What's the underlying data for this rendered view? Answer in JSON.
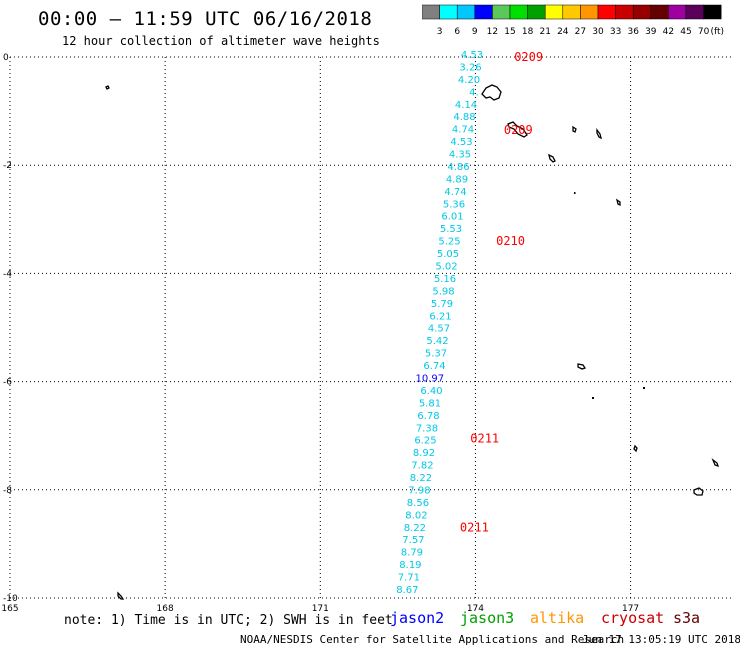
{
  "title": "00:00 – 11:59 UTC 06/16/2018",
  "subtitle": "12 hour collection of altimeter wave heights",
  "scale": {
    "colors": [
      "#808080",
      "#00ffff",
      "#00c8ff",
      "#0000ff",
      "#5ac85a",
      "#00e000",
      "#00a000",
      "#ffff00",
      "#ffc800",
      "#ff9600",
      "#ff0000",
      "#c80000",
      "#960000",
      "#640000",
      "#a000a0",
      "#5a005a",
      "#000000"
    ],
    "labels": [
      "3",
      "6",
      "9",
      "12",
      "15",
      "18",
      "21",
      "24",
      "27",
      "30",
      "33",
      "36",
      "39",
      "42",
      "45",
      "70"
    ],
    "unit": "(ft)"
  },
  "axes": {
    "y_labels": [
      "0",
      "-2",
      "-4",
      "-6",
      "-8",
      "-10"
    ],
    "x_labels": [
      "165",
      "168",
      "171",
      "174",
      "177"
    ],
    "lat_range": [
      -10,
      0
    ],
    "lon_range": [
      165,
      179
    ]
  },
  "track": {
    "start_lon": 174.15,
    "end_lon": 172.9,
    "heights": [
      "4.53",
      "3.26",
      "4.20",
      "4.",
      "4.14",
      "4.88",
      "4.74",
      "4.53",
      "4.35",
      "4.86",
      "4.89",
      "4.74",
      "5.36",
      "6.01",
      "5.53",
      "5.25",
      "5.05",
      "5.02",
      "5.16",
      "5.98",
      "5.79",
      "6.21",
      "4.57",
      "5.42",
      "5.37",
      "6.74",
      "10.97",
      "6.40",
      "5.81",
      "6.78",
      "7.38",
      "6.25",
      "8.92",
      "7.82",
      "8.22",
      "7.98",
      "8.56",
      "8.02",
      "8.22",
      "7.57",
      "8.79",
      "8.19",
      "7.71",
      "8.67"
    ],
    "color_default": "#00c8e6",
    "color_high": "#0000ff",
    "high_index": 26
  },
  "time_labels": [
    {
      "text": "0209",
      "lat": 0.0,
      "lon": 174.75
    },
    {
      "text": "0209",
      "lat": -1.35,
      "lon": 174.55
    },
    {
      "text": "0210",
      "lat": -3.4,
      "lon": 174.4
    },
    {
      "text": "0211",
      "lat": -7.05,
      "lon": 173.9
    },
    {
      "text": "0211",
      "lat": -8.7,
      "lon": 173.7
    }
  ],
  "note": "note: 1) Time is in UTC; 2) SWH is in feet",
  "satellites": [
    {
      "name": "jason2",
      "color": "#0000ff"
    },
    {
      "name": "jason3",
      "color": "#00a000"
    },
    {
      "name": "altika",
      "color": "#ff9600"
    },
    {
      "name": "cryosat",
      "color": "#c80000"
    },
    {
      "name": "s3a",
      "color": "#640000"
    }
  ],
  "credit": "NOAA/NESDIS Center for Satellite Applications and Research",
  "timestamp": "Jun 17 13:05:19 UTC 2018",
  "time_label_color": "#ff0000"
}
